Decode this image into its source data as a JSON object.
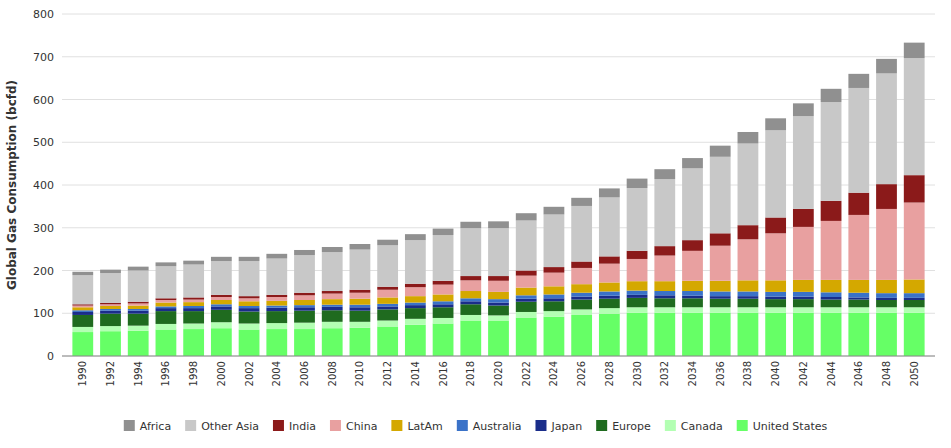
{
  "chart_data": {
    "type": "bar",
    "stacked": true,
    "ylabel": "Global Gas Consumption (bcfd)",
    "x": [
      1990,
      1992,
      1994,
      1996,
      1998,
      2000,
      2002,
      2004,
      2006,
      2008,
      2010,
      2012,
      2014,
      2016,
      2018,
      2020,
      2022,
      2024,
      2026,
      2028,
      2030,
      2032,
      2034,
      2036,
      2038,
      2040,
      2042,
      2044,
      2046,
      2048,
      2050
    ],
    "xlim": [
      1988.5,
      2051.5
    ],
    "xticks": [
      1990,
      1992,
      1994,
      1996,
      1998,
      2000,
      2002,
      2004,
      2006,
      2008,
      2010,
      2012,
      2014,
      2016,
      2018,
      2020,
      2022,
      2024,
      2026,
      2028,
      2030,
      2032,
      2034,
      2036,
      2038,
      2040,
      2042,
      2044,
      2046,
      2048,
      2050
    ],
    "ylim": [
      0,
      800
    ],
    "yticks": [
      0,
      100,
      200,
      300,
      400,
      500,
      600,
      700,
      800
    ],
    "grid": true,
    "legend": "bottom",
    "series": [
      {
        "name": "United States",
        "color": "#66ff66",
        "values": [
          56,
          58,
          59,
          62,
          63,
          65,
          62,
          63,
          63,
          65,
          66,
          69,
          73,
          76,
          83,
          83,
          90,
          92,
          96,
          99,
          101,
          101,
          101,
          101,
          101,
          101,
          101,
          101,
          101,
          101,
          101
        ]
      },
      {
        "name": "Canada",
        "color": "#b3ffb3",
        "values": [
          12,
          12,
          12,
          13,
          13,
          14,
          14,
          14,
          15,
          15,
          14,
          14,
          14,
          13,
          13,
          12,
          13,
          13,
          13,
          13,
          13,
          13,
          13,
          13,
          13,
          13,
          13,
          13,
          13,
          13,
          13
        ]
      },
      {
        "name": "Europe",
        "color": "#1f6b1f",
        "values": [
          28,
          29,
          28,
          30,
          29,
          29,
          28,
          28,
          28,
          27,
          26,
          26,
          25,
          25,
          25,
          23,
          24,
          23,
          23,
          22,
          22,
          21,
          21,
          20,
          20,
          19,
          19,
          18,
          18,
          17,
          17
        ]
      },
      {
        "name": "Japan",
        "color": "#1a2d8a",
        "values": [
          7,
          7,
          7,
          7,
          7,
          8,
          8,
          8,
          8,
          8,
          8,
          7,
          7,
          7,
          7,
          7,
          7,
          7,
          7,
          7,
          7,
          7,
          6,
          6,
          6,
          6,
          6,
          6,
          5,
          5,
          5
        ]
      },
      {
        "name": "Australia",
        "color": "#3a72c8",
        "values": [
          4,
          4,
          4,
          4,
          5,
          5,
          5,
          5,
          5,
          5,
          6,
          6,
          6,
          7,
          7,
          8,
          8,
          9,
          9,
          10,
          10,
          10,
          11,
          11,
          11,
          11,
          11,
          11,
          11,
          11,
          11
        ]
      },
      {
        "name": "LatAm",
        "color": "#d4a800",
        "values": [
          7,
          7,
          8,
          9,
          9,
          10,
          11,
          11,
          12,
          13,
          14,
          15,
          15,
          16,
          17,
          17,
          18,
          19,
          20,
          21,
          22,
          23,
          24,
          25,
          26,
          27,
          28,
          29,
          30,
          31,
          32
        ]
      },
      {
        "name": "China",
        "color": "#e8a0a0",
        "values": [
          4,
          4,
          5,
          6,
          6,
          7,
          7,
          9,
          11,
          13,
          14,
          18,
          21,
          23,
          25,
          26,
          28,
          32,
          38,
          44,
          52,
          60,
          70,
          82,
          96,
          110,
          124,
          138,
          152,
          166,
          180
        ]
      },
      {
        "name": "India",
        "color": "#8b1a1a",
        "values": [
          3,
          3,
          4,
          4,
          5,
          5,
          5,
          5,
          6,
          6,
          7,
          7,
          8,
          9,
          10,
          11,
          12,
          13,
          15,
          17,
          19,
          22,
          25,
          29,
          33,
          37,
          42,
          47,
          52,
          58,
          64
        ]
      },
      {
        "name": "Other Asia",
        "color": "#c8c8c8",
        "values": [
          68,
          70,
          73,
          75,
          77,
          79,
          82,
          85,
          88,
          91,
          94,
          97,
          102,
          107,
          112,
          112,
          117,
          123,
          130,
          138,
          147,
          157,
          168,
          179,
          191,
          204,
          217,
          231,
          245,
          259,
          274
        ]
      },
      {
        "name": "Africa",
        "color": "#909090",
        "values": [
          8,
          8,
          9,
          9,
          9,
          10,
          10,
          11,
          12,
          12,
          13,
          13,
          14,
          15,
          15,
          16,
          17,
          18,
          19,
          21,
          22,
          23,
          24,
          26,
          27,
          28,
          30,
          31,
          33,
          34,
          36
        ]
      }
    ]
  }
}
